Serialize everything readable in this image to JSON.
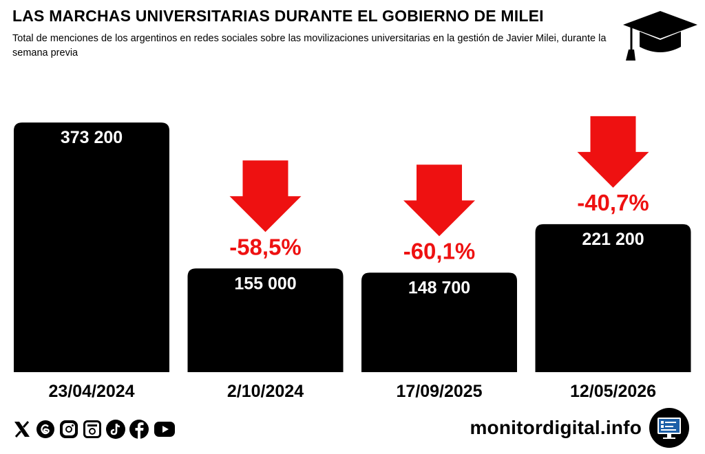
{
  "header": {
    "title": "LAS MARCHAS UNIVERSITARIAS DURANTE EL GOBIERNO DE MILEI",
    "subtitle": "Total de menciones de los argentinos en redes sociales sobre las movilizaciones universitarias en la gestión de Javier Milei, durante la semana previa",
    "icon": "graduation-cap-icon"
  },
  "chart_data": {
    "type": "bar",
    "categories": [
      "23/04/2024",
      "2/10/2024",
      "17/09/2025",
      "12/05/2026"
    ],
    "values": [
      373200,
      155000,
      148700,
      221200
    ],
    "value_labels": [
      "373 200",
      "155 000",
      "148 700",
      "221 200"
    ],
    "change_labels": [
      "",
      "-58,5%",
      "-60,1%",
      "-40,7%"
    ],
    "change_values": [
      null,
      -58.5,
      -60.1,
      -40.7
    ],
    "ylim": [
      0,
      400000
    ],
    "grid": false,
    "legend": "none",
    "bar_color": "#000000",
    "change_color": "#ee1111"
  },
  "footer": {
    "site": "monitordigital.info",
    "social_icons": [
      "x-icon",
      "threads-icon",
      "instagram-icon",
      "newspaper-icon",
      "tiktok-icon",
      "facebook-icon",
      "youtube-icon"
    ],
    "logo_icon": "monitor-icon"
  }
}
